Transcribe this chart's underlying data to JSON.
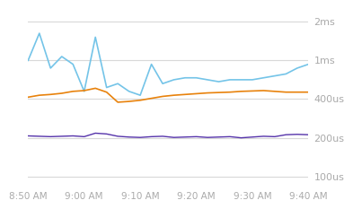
{
  "background_color": "#ffffff",
  "grid_color": "#d8d8d8",
  "y_tick_labels": [
    "100us",
    "200us",
    "400us",
    "1ms",
    "2ms"
  ],
  "y_tick_positions": [
    0,
    1,
    2,
    3,
    4
  ],
  "x_tick_labels": [
    "8:50 AM",
    "9:00 AM",
    "9:10 AM",
    "9:20 AM",
    "9:30 AM",
    "9:40 AM"
  ],
  "x_tick_values": [
    0,
    10,
    20,
    30,
    40,
    50
  ],
  "blue_color": "#74c4e8",
  "orange_color": "#e8820c",
  "purple_color": "#5533aa",
  "blue_x": [
    0,
    2,
    4,
    6,
    8,
    10,
    12,
    14,
    16,
    18,
    20,
    22,
    24,
    26,
    28,
    30,
    32,
    34,
    36,
    38,
    40,
    42,
    44,
    46,
    48,
    50
  ],
  "blue_y": [
    3.0,
    3.7,
    2.8,
    3.1,
    2.9,
    2.2,
    3.6,
    2.3,
    2.4,
    2.2,
    2.1,
    2.9,
    2.4,
    2.5,
    2.55,
    2.55,
    2.5,
    2.45,
    2.5,
    2.5,
    2.5,
    2.55,
    2.6,
    2.65,
    2.8,
    2.9
  ],
  "orange_x": [
    0,
    2,
    4,
    6,
    8,
    10,
    12,
    14,
    16,
    18,
    20,
    22,
    24,
    26,
    28,
    30,
    32,
    34,
    36,
    38,
    40,
    42,
    44,
    46,
    48,
    50
  ],
  "orange_y": [
    2.05,
    2.1,
    2.12,
    2.15,
    2.2,
    2.22,
    2.28,
    2.18,
    1.92,
    1.94,
    1.97,
    2.02,
    2.07,
    2.1,
    2.12,
    2.14,
    2.16,
    2.17,
    2.18,
    2.2,
    2.21,
    2.22,
    2.2,
    2.18,
    2.18,
    2.18
  ],
  "purple_x": [
    0,
    2,
    4,
    6,
    8,
    10,
    12,
    14,
    16,
    18,
    20,
    22,
    24,
    26,
    28,
    30,
    32,
    34,
    36,
    38,
    40,
    42,
    44,
    46,
    48,
    50
  ],
  "purple_y": [
    1.05,
    1.04,
    1.03,
    1.04,
    1.05,
    1.03,
    1.12,
    1.1,
    1.04,
    1.02,
    1.01,
    1.03,
    1.04,
    1.01,
    1.02,
    1.03,
    1.01,
    1.02,
    1.03,
    1.0,
    1.02,
    1.04,
    1.03,
    1.08,
    1.09,
    1.08
  ],
  "xlim": [
    0,
    50
  ],
  "ylim": [
    -0.15,
    4.35
  ],
  "label_fontsize": 8,
  "tick_fontsize": 7.5,
  "label_color": "#aaaaaa"
}
